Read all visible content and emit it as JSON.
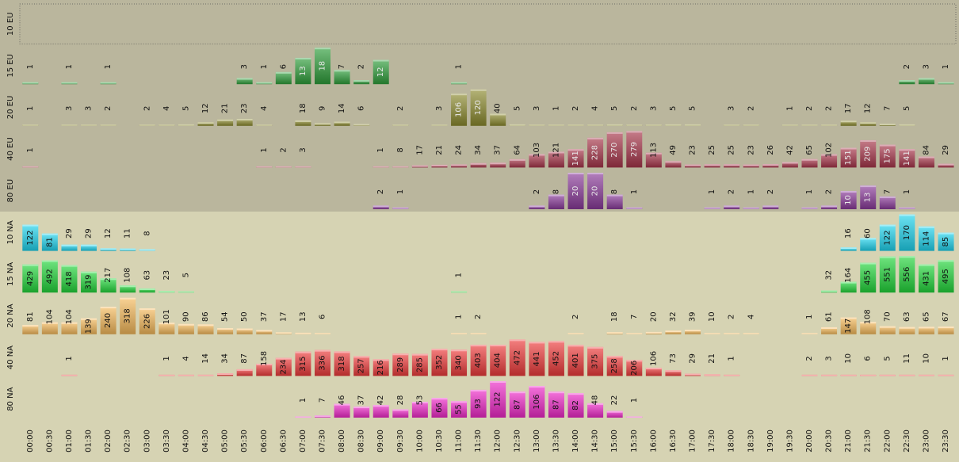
{
  "chart_data": {
    "type": "bar",
    "categories": [
      "00:00",
      "00:30",
      "01:00",
      "01:30",
      "02:00",
      "02:30",
      "03:00",
      "03:30",
      "04:00",
      "04:30",
      "05:00",
      "05:30",
      "06:00",
      "06:30",
      "07:00",
      "07:30",
      "08:00",
      "08:30",
      "09:00",
      "09:30",
      "10:00",
      "10:30",
      "11:00",
      "11:30",
      "12:00",
      "12:30",
      "13:00",
      "13:30",
      "14:00",
      "14:30",
      "15:00",
      "15:30",
      "16:00",
      "16:30",
      "17:00",
      "17:30",
      "18:00",
      "18:30",
      "19:00",
      "19:30",
      "20:00",
      "20:30",
      "21:00",
      "21:30",
      "22:00",
      "22:30",
      "23:00",
      "23:30"
    ],
    "groups": [
      {
        "name": "EU",
        "background": "#bab69d"
      },
      {
        "name": "NA",
        "background": "#d6d3b3"
      }
    ],
    "rows": [
      {
        "label": "10 EU",
        "group": "EU",
        "color": "#7a7a7a",
        "values": [
          0,
          0,
          0,
          0,
          0,
          0,
          0,
          0,
          0,
          0,
          0,
          0,
          0,
          0,
          0,
          0,
          0,
          0,
          0,
          0,
          0,
          0,
          0,
          0,
          0,
          0,
          0,
          0,
          0,
          0,
          0,
          0,
          0,
          0,
          0,
          0,
          0,
          0,
          0,
          0,
          0,
          0,
          0,
          0,
          0,
          0,
          0,
          0
        ]
      },
      {
        "label": "15 EU",
        "group": "EU",
        "color": "#2e9e3a",
        "values": [
          1,
          0,
          1,
          0,
          1,
          0,
          0,
          0,
          0,
          0,
          0,
          3,
          1,
          6,
          13,
          18,
          7,
          2,
          12,
          0,
          0,
          0,
          1,
          0,
          0,
          0,
          0,
          0,
          0,
          0,
          0,
          0,
          0,
          0,
          0,
          0,
          0,
          0,
          0,
          0,
          0,
          0,
          0,
          0,
          0,
          2,
          3,
          1
        ]
      },
      {
        "label": "20 EU",
        "group": "EU",
        "color": "#8c8a2e",
        "values": [
          1,
          0,
          3,
          3,
          2,
          0,
          2,
          4,
          5,
          12,
          21,
          23,
          4,
          0,
          18,
          9,
          14,
          6,
          0,
          2,
          0,
          3,
          106,
          120,
          40,
          5,
          3,
          1,
          2,
          4,
          5,
          2,
          3,
          5,
          5,
          0,
          3,
          2,
          0,
          1,
          2,
          2,
          17,
          12,
          7,
          5,
          0,
          0
        ]
      },
      {
        "label": "40 EU",
        "group": "EU",
        "color": "#a8354a",
        "values": [
          1,
          0,
          0,
          0,
          0,
          0,
          0,
          0,
          0,
          0,
          0,
          0,
          1,
          2,
          3,
          0,
          0,
          0,
          1,
          8,
          17,
          21,
          24,
          34,
          37,
          64,
          103,
          121,
          141,
          228,
          270,
          279,
          113,
          49,
          23,
          25,
          25,
          23,
          26,
          42,
          65,
          102,
          151,
          209,
          175,
          141,
          84,
          29
        ]
      },
      {
        "label": "80 EU",
        "group": "EU",
        "color": "#8a3a9a",
        "values": [
          0,
          0,
          0,
          0,
          0,
          0,
          0,
          0,
          0,
          0,
          0,
          0,
          0,
          0,
          0,
          0,
          0,
          0,
          2,
          1,
          0,
          0,
          0,
          0,
          0,
          0,
          2,
          8,
          20,
          20,
          8,
          1,
          0,
          0,
          0,
          1,
          2,
          1,
          2,
          0,
          1,
          2,
          10,
          13,
          7,
          1,
          0,
          0
        ]
      },
      {
        "label": "10 NA",
        "group": "NA",
        "color": "#1fd4ee",
        "values": [
          122,
          81,
          29,
          29,
          12,
          11,
          8,
          0,
          0,
          0,
          0,
          0,
          0,
          0,
          0,
          0,
          0,
          0,
          0,
          0,
          0,
          0,
          0,
          0,
          0,
          0,
          0,
          0,
          0,
          0,
          0,
          0,
          0,
          0,
          0,
          0,
          0,
          0,
          0,
          0,
          0,
          0,
          16,
          60,
          122,
          170,
          114,
          85
        ]
      },
      {
        "label": "15 NA",
        "group": "NA",
        "color": "#22d63a",
        "values": [
          429,
          492,
          418,
          319,
          217,
          108,
          63,
          23,
          5,
          0,
          0,
          0,
          0,
          0,
          0,
          0,
          0,
          0,
          0,
          0,
          0,
          0,
          1,
          0,
          0,
          0,
          0,
          0,
          0,
          0,
          0,
          0,
          0,
          0,
          0,
          0,
          0,
          0,
          0,
          0,
          0,
          32,
          164,
          455,
          551,
          556,
          431,
          495
        ]
      },
      {
        "label": "20 NA",
        "group": "NA",
        "color": "#f5b95a",
        "values": [
          81,
          104,
          104,
          139,
          240,
          318,
          226,
          101,
          90,
          86,
          54,
          50,
          37,
          17,
          13,
          6,
          0,
          0,
          0,
          0,
          0,
          0,
          1,
          2,
          0,
          0,
          0,
          0,
          2,
          0,
          18,
          7,
          20,
          32,
          39,
          10,
          2,
          4,
          0,
          0,
          1,
          61,
          147,
          108,
          70,
          63,
          65,
          67
        ]
      },
      {
        "label": "40 NA",
        "group": "NA",
        "color": "#ee3a3a",
        "values": [
          0,
          0,
          1,
          0,
          0,
          0,
          0,
          1,
          4,
          14,
          34,
          87,
          158,
          234,
          315,
          336,
          318,
          257,
          216,
          289,
          285,
          352,
          340,
          403,
          404,
          472,
          441,
          452,
          401,
          375,
          258,
          206,
          106,
          73,
          29,
          21,
          1,
          0,
          0,
          0,
          2,
          3,
          10,
          6,
          5,
          11,
          10,
          1
        ]
      },
      {
        "label": "80 NA",
        "group": "NA",
        "color": "#ee28c8",
        "values": [
          0,
          0,
          0,
          0,
          0,
          0,
          0,
          0,
          0,
          0,
          0,
          0,
          0,
          0,
          1,
          7,
          46,
          37,
          42,
          28,
          53,
          66,
          55,
          93,
          122,
          87,
          106,
          87,
          82,
          48,
          22,
          1,
          0,
          0,
          0,
          0,
          0,
          0,
          0,
          0,
          0,
          0,
          0,
          0,
          0,
          0,
          0,
          0
        ]
      }
    ],
    "grid": false,
    "legend": "none"
  }
}
